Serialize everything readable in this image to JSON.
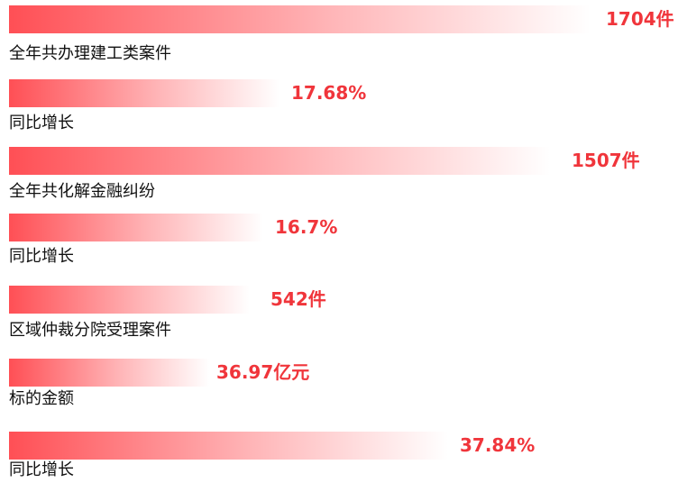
{
  "items": [
    {
      "value_text": "1704件",
      "label": "全年共办理建工类案件"
    },
    {
      "value_text": "17.68%",
      "label": "同比增长"
    },
    {
      "value_text": "1507件",
      "label": "全年共化解金融纠纷"
    },
    {
      "value_text": "16.7%",
      "label": "同比增长"
    },
    {
      "value_text": "542件",
      "label": "区域仲裁分院受理案件"
    },
    {
      "value_text": "36.97亿元",
      "label": "标的金额"
    },
    {
      "value_text": "37.84%",
      "label": "同比增长"
    }
  ]
}
